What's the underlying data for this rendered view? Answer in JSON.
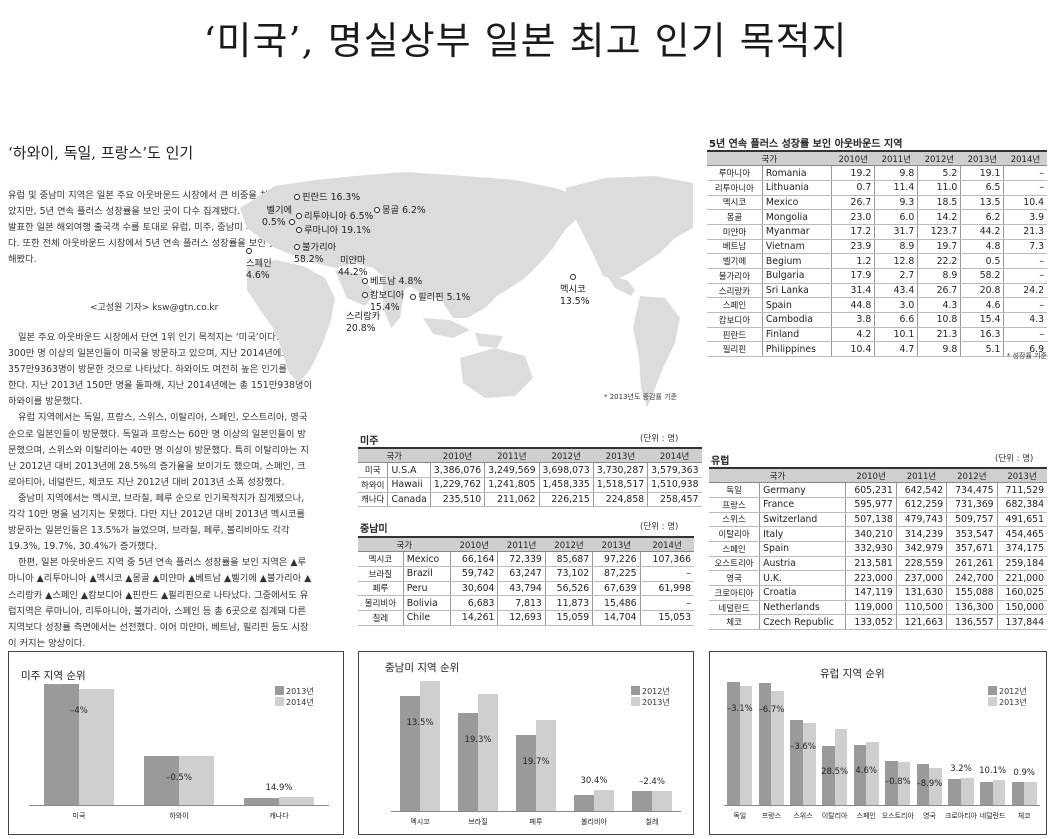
{
  "headline": "‘미국’, 명실상부 일본 최고 인기 목적지",
  "subhead": "‘하와이, 독일, 프랑스’도 인기",
  "lead": "유럽 및 중남미 지역은 일본 주요 아웃바운드 시장에서 큰 비중을 차지하는 않았지만, 5년 연속 플러스 성장률을 보인 곳이 다수 집계됐다. 이에 JNTO에서 발표한 일본 해외여행 출국객 수를 토대로 유럽, 미주, 중남미 지역을 분석했다. 또한 전체 아웃바운드 시장에서 5년 연속 플러스 성장률을 보인 곳도 조사해봤다.",
  "byline": "<고성원 기자> ksw@gtn.co.kr",
  "body_paragraphs": [
    "일본 주요 아웃바운드 시장에서 단연 1위 인기 목적지는 ‘미국’이다. 매년 300만 명 이상의 일본인들이 미국을 방문하고 있으며, 지난 2014년에도 총 357만9363명이 방문한 것으로 나타났다. 하와이도 여전히 높은 인기를 자랑한다. 지난 2013년 150만 명을 돌파해, 지난 2014년에는 총 151만938명이 하와이를 방문했다.",
    "유럽 지역에서는 독일, 프랑스, 스위스, 이탈리아, 스페인, 오스트리아, 영국 순으로 일본인들이 방문했다. 독일과 프랑스는 60만 명 이상의 일본인들이 방문했으며, 스위스와 이탈리아는 40만 명 이상이 방문했다. 특히 이탈리아는 지난 2012년 대비 2013년에 28.5%의 증가율을 보이기도 했으며, 스페인, 크로아티아, 네덜란드, 체코도 지난 2012년 대비 2013년 소폭 성장했다.",
    "중남미 지역에서는 멕시코, 브라질, 페루 순으로 인기목적지가 집계됐으나, 각각 10만 명을 넘기지는 못했다. 다만 지난 2012년 대비 2013년 멕시코를 방문하는 일본인들은 13.5%가 늘었으며, 브라질, 페루, 볼리비아도 각각 19.3%, 19.7%, 30.4%가 증가했다.",
    "한편, 일본 아웃바운드 지역 중 5년 연속 플러스 성장률을 보인 지역은 ▲루마니아 ▲리투아니아 ▲멕시코 ▲몽골 ▲미얀마 ▲베트남 ▲벨기에 ▲불가리아 ▲스리랑카 ▲스페인 ▲캄보디아 ▲핀란드 ▲필리핀으로 나타났다. 그중에서도 유럽지역은 루마니아, 리투아니아, 불가리아, 스페인 등 총 6곳으로 집계돼 다른 지역보다 성장률 측면에서는 선전했다. 이어 미얀마, 베트남, 필리핀 등도 시장이 커지는 양상이다."
  ],
  "map": {
    "note": "* 2013년도 증감률 기준",
    "labels": [
      {
        "name": "핀란드",
        "value": "16.3%"
      },
      {
        "name": "몽골",
        "value": "6.2%"
      },
      {
        "name": "벨기에",
        "value": "0.5%"
      },
      {
        "name": "리투아니아",
        "value": "6.5%"
      },
      {
        "name": "루마니아",
        "value": "19.1%"
      },
      {
        "name": "불가리아",
        "value": "58.2%"
      },
      {
        "name": "스페인",
        "value": "4.6%"
      },
      {
        "name": "미얀마",
        "value": "44.2%"
      },
      {
        "name": "베트남",
        "value": "4.8%"
      },
      {
        "name": "캄보디아",
        "value": "15.4%"
      },
      {
        "name": "필리핀",
        "value": "5.1%"
      },
      {
        "name": "스리랑카",
        "value": "20.8%"
      },
      {
        "name": "멕시코",
        "value": "13.5%"
      }
    ]
  },
  "growth_table": {
    "title": "5년 연속 플러스 성장률 보인 아웃바운드 지역",
    "headers": [
      "국가",
      "2010년",
      "2011년",
      "2012년",
      "2013년",
      "2014년"
    ],
    "rows": [
      [
        "루마니아",
        "Romania",
        "19.2",
        "9.8",
        "5.2",
        "19.1",
        "–"
      ],
      [
        "리투아니아",
        "Lithuania",
        "0.7",
        "11.4",
        "11.0",
        "6.5",
        "–"
      ],
      [
        "멕시코",
        "Mexico",
        "26.7",
        "9.3",
        "18.5",
        "13.5",
        "10.4"
      ],
      [
        "몽골",
        "Mongolia",
        "23.0",
        "6.0",
        "14.2",
        "6.2",
        "3.9"
      ],
      [
        "미얀마",
        "Myanmar",
        "17.2",
        "31.7",
        "123.7",
        "44.2",
        "21.3"
      ],
      [
        "베트남",
        "Vietnam",
        "23.9",
        "8.9",
        "19.7",
        "4.8",
        "7.3"
      ],
      [
        "벨기에",
        "Begium",
        "1.2",
        "12.8",
        "22.2",
        "0.5",
        "–"
      ],
      [
        "불가리아",
        "Bulgaria",
        "17.9",
        "2.7",
        "8.9",
        "58.2",
        "–"
      ],
      [
        "스리랑카",
        "Sri Lanka",
        "31.4",
        "43.4",
        "26.7",
        "20.8",
        "24.2"
      ],
      [
        "스페인",
        "Spain",
        "44.8",
        "3.0",
        "4.3",
        "4.6",
        "–"
      ],
      [
        "캄보디아",
        "Cambodia",
        "3.8",
        "6.6",
        "10.8",
        "15.4",
        "4.3"
      ],
      [
        "핀란드",
        "Finland",
        "4.2",
        "10.1",
        "21.3",
        "16.3",
        "–"
      ],
      [
        "필리핀",
        "Philippines",
        "10.4",
        "4.7",
        "9.8",
        "5.1",
        "6.9"
      ]
    ],
    "note": "* 성장률 기준"
  },
  "americas_table": {
    "title": "미주",
    "unit": "(단위 : 명)",
    "headers": [
      "국가",
      "2010년",
      "2011년",
      "2012년",
      "2013년",
      "2014년"
    ],
    "rows": [
      [
        "미국",
        "U.S.A",
        "3,386,076",
        "3,249,569",
        "3,698,073",
        "3,730,287",
        "3,579,363"
      ],
      [
        "하와이",
        "Hawaii",
        "1,229,762",
        "1,241,805",
        "1,458,335",
        "1,518,517",
        "1,510,938"
      ],
      [
        "캐나다",
        "Canada",
        "235,510",
        "211,062",
        "226,215",
        "224,858",
        "258,457"
      ]
    ]
  },
  "latam_table": {
    "title": "중남미",
    "unit": "(단위 : 명)",
    "headers": [
      "국가",
      "2010년",
      "2011년",
      "2012년",
      "2013년",
      "2014년"
    ],
    "rows": [
      [
        "멕시코",
        "Mexico",
        "66,164",
        "72,339",
        "85,687",
        "97,226",
        "107,366"
      ],
      [
        "브라질",
        "Brazil",
        "59,742",
        "63,247",
        "73,102",
        "87,225",
        "–"
      ],
      [
        "페루",
        "Peru",
        "30,604",
        "43,794",
        "56,526",
        "67,639",
        "61,998"
      ],
      [
        "볼리비아",
        "Bolivia",
        "6,683",
        "7,813",
        "11,873",
        "15,486",
        "–"
      ],
      [
        "칠레",
        "Chile",
        "14,261",
        "12,693",
        "15,059",
        "14,704",
        "15,053"
      ]
    ]
  },
  "europe_table": {
    "title": "유럽",
    "unit": "(단위 : 명)",
    "headers": [
      "국가",
      "2010년",
      "2011년",
      "2012년",
      "2013년"
    ],
    "rows": [
      [
        "독일",
        "Germany",
        "605,231",
        "642,542",
        "734,475",
        "711,529"
      ],
      [
        "프랑스",
        "France",
        "595,977",
        "612,259",
        "731,369",
        "682,384"
      ],
      [
        "스위스",
        "Switzerland",
        "507,138",
        "479,743",
        "509,757",
        "491,651"
      ],
      [
        "이탈리아",
        "Italy",
        "340,210",
        "314,239",
        "353,547",
        "454,465"
      ],
      [
        "스페인",
        "Spain",
        "332,930",
        "342,979",
        "357,671",
        "374,175"
      ],
      [
        "오스트리아",
        "Austria",
        "213,581",
        "228,559",
        "261,261",
        "259,184"
      ],
      [
        "영국",
        "U.K.",
        "223,000",
        "237,000",
        "242,700",
        "221,000"
      ],
      [
        "크로아티아",
        "Croatia",
        "147,119",
        "131,630",
        "155,088",
        "160,025"
      ],
      [
        "네덜란드",
        "Netherlands",
        "119,000",
        "110,500",
        "136,300",
        "150,000"
      ],
      [
        "체코",
        "Czech Republic",
        "133,052",
        "121,663",
        "136,557",
        "137,844"
      ]
    ]
  },
  "colors": {
    "dark_bar": "#9a9a9a",
    "light_bar": "#cfcfcf",
    "header_bg": "#cfcfcf",
    "map": "#dcdcdc"
  },
  "chart_data": [
    {
      "type": "bar",
      "title": "미주 지역 순위",
      "categories": [
        "미국",
        "하와이",
        "캐나다"
      ],
      "series": [
        {
          "name": "2013년",
          "values": [
            3730287,
            1518517,
            224858
          ]
        },
        {
          "name": "2014년",
          "values": [
            3579363,
            1510938,
            258457
          ]
        }
      ],
      "annotations": [
        "–4%",
        "–0.5%",
        "14.9%"
      ]
    },
    {
      "type": "bar",
      "title": "중남미 지역 순위",
      "categories": [
        "멕시코",
        "브라질",
        "페루",
        "볼리비아",
        "칠레"
      ],
      "series": [
        {
          "name": "2012년",
          "values": [
            85687,
            73102,
            56526,
            11873,
            15059
          ]
        },
        {
          "name": "2013년",
          "values": [
            97226,
            87225,
            67639,
            15486,
            14704
          ]
        }
      ],
      "annotations": [
        "13.5%",
        "19.3%",
        "19.7%",
        "30.4%",
        "–2.4%"
      ]
    },
    {
      "type": "bar",
      "title": "유럽 지역 순위",
      "categories": [
        "독일",
        "프랑스",
        "스위스",
        "이탈리아",
        "스페인",
        "오스트리아",
        "영국",
        "크로아티아",
        "네덜란드",
        "체코"
      ],
      "series": [
        {
          "name": "2012년",
          "values": [
            734475,
            731369,
            509757,
            353547,
            357671,
            261261,
            242700,
            155088,
            136300,
            136557
          ]
        },
        {
          "name": "2013년",
          "values": [
            711529,
            682384,
            491651,
            454465,
            374175,
            259184,
            221000,
            160025,
            150000,
            137844
          ]
        }
      ],
      "annotations": [
        "–3.1%",
        "–6.7%",
        "–3.6%",
        "28.5%",
        "4.6%",
        "–0.8%",
        "–8.9%",
        "3.2%",
        "10.1%",
        "0.9%"
      ]
    }
  ]
}
